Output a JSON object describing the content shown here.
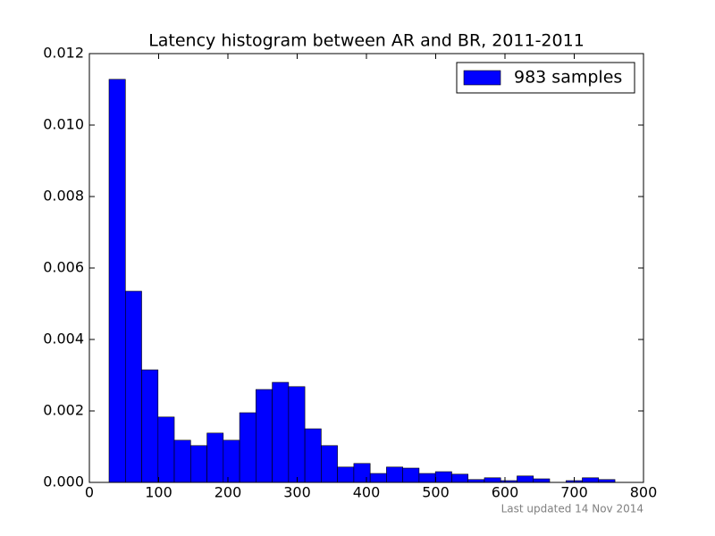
{
  "chart_data": {
    "type": "histogram",
    "title": "Latency histogram between AR and BR, 2011-2011",
    "footer": "Last updated 14 Nov 2014",
    "legend": "upper right",
    "series": [
      {
        "name": "983 samples",
        "color": "#0000ff",
        "bins": [
          28.4,
          52.0,
          75.5,
          99.1,
          122.6,
          146.2,
          169.8,
          193.3,
          216.9,
          240.4,
          264.0,
          287.6,
          311.1,
          334.7,
          358.2,
          381.8,
          405.4,
          428.9,
          452.5,
          476.0,
          499.6,
          523.2,
          546.7,
          570.3,
          593.8,
          617.4,
          641.0,
          664.5,
          688.1,
          711.6,
          735.2,
          758.8
        ],
        "values": [
          0.01128,
          0.00535,
          0.00315,
          0.00183,
          0.00118,
          0.00103,
          0.00138,
          0.00118,
          0.00195,
          0.0026,
          0.0028,
          0.00268,
          0.0015,
          0.00103,
          0.00043,
          0.00053,
          0.00025,
          0.00043,
          0.0004,
          0.00025,
          0.0003,
          0.00023,
          8e-05,
          0.00013,
          5e-05,
          0.00018,
          0.0001,
          0,
          5e-05,
          0.00013,
          8e-05
        ]
      }
    ],
    "xlim": [
      0,
      800
    ],
    "xticks": [
      0,
      100,
      200,
      300,
      400,
      500,
      600,
      700,
      800
    ],
    "ylim": [
      0,
      0.012
    ],
    "yticks": [
      {
        "value": 0,
        "label": "0.000"
      },
      {
        "value": 0.002,
        "label": "0.002"
      },
      {
        "value": 0.004,
        "label": "0.004"
      },
      {
        "value": 0.006,
        "label": "0.006"
      },
      {
        "value": 0.008,
        "label": "0.008"
      },
      {
        "value": 0.01,
        "label": "0.010"
      },
      {
        "value": 0.012,
        "label": "0.012"
      }
    ]
  }
}
